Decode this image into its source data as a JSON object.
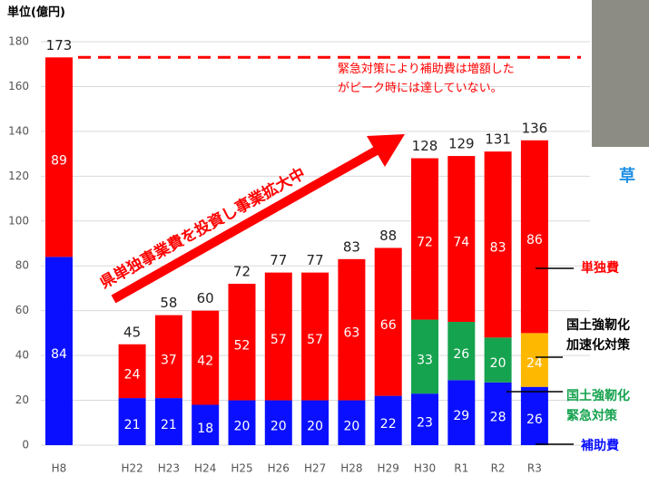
{
  "chart_data": {
    "type": "stacked-bar",
    "y_label": "単位(億円)",
    "categories": [
      "H8",
      null,
      "H22",
      "H23",
      "H24",
      "H25",
      "H26",
      "H27",
      "H28",
      "H29",
      "H30",
      "R1",
      "R2",
      "R3"
    ],
    "series": [
      {
        "name": "補助費",
        "color": "#0a10ff",
        "legend_text_color": "#0a10ff",
        "values": [
          84,
          null,
          21,
          21,
          18,
          20,
          20,
          20,
          20,
          22,
          23,
          29,
          28,
          26
        ]
      },
      {
        "name": "国土強靭化\n緊急対策",
        "color": "#16a34f",
        "legend_text_color": "#16a34f",
        "values": [
          null,
          null,
          null,
          null,
          null,
          null,
          null,
          null,
          null,
          null,
          33,
          26,
          20,
          null
        ]
      },
      {
        "name": "国土強靭化\n加速化対策",
        "color": "#ffb800",
        "legend_text_color": "#000000",
        "values": [
          null,
          null,
          null,
          null,
          null,
          null,
          null,
          null,
          null,
          null,
          null,
          null,
          null,
          24
        ]
      },
      {
        "name": "単独費",
        "color": "#ff0000",
        "legend_text_color": "#ff0000",
        "values": [
          89,
          null,
          24,
          37,
          42,
          52,
          57,
          57,
          63,
          66,
          72,
          74,
          83,
          86
        ]
      }
    ],
    "totals": [
      173,
      null,
      45,
      58,
      60,
      72,
      77,
      77,
      83,
      88,
      128,
      129,
      131,
      136
    ],
    "ylim": [
      0,
      180
    ],
    "yticks": [
      0,
      20,
      40,
      60,
      80,
      100,
      120,
      140,
      160,
      180
    ],
    "grid": true,
    "peak_line": {
      "value": 173,
      "color": "#ff0000"
    },
    "annotation": "緊急対策により補助費は増額した\nがピーク時には達していない。",
    "arrow_text": "県単独事業費を投資し事業拡大中",
    "photo_caption": "草"
  }
}
